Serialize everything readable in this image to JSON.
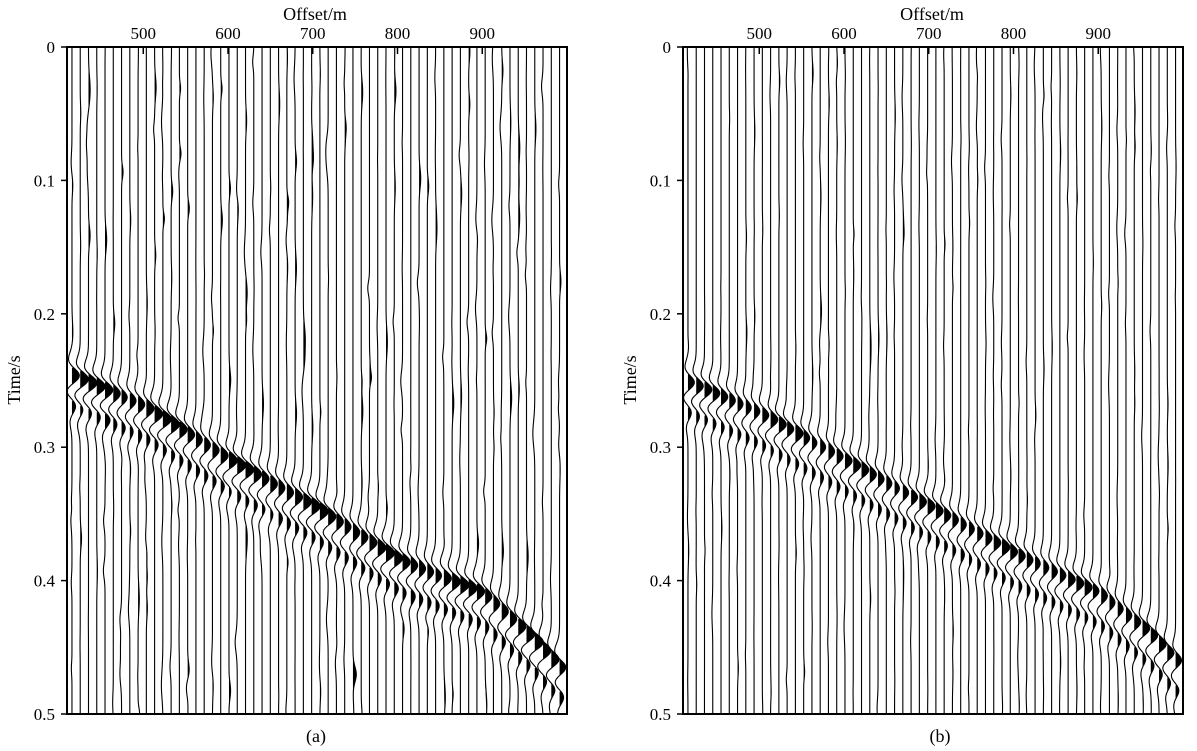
{
  "colors": {
    "trace": "#000000",
    "background": "#ffffff"
  },
  "chart_data": [
    {
      "type": "seismic-wiggle",
      "panel_label": "(a)",
      "xlabel": "Offset/m",
      "ylabel": "Time/s",
      "xticks": [
        500,
        600,
        700,
        800,
        900
      ],
      "yticks": [
        "0",
        "0.1",
        "0.2",
        "0.3",
        "0.4",
        "0.5"
      ],
      "xlim": [
        410,
        1000
      ],
      "ylim": [
        0,
        0.5
      ],
      "grid": false,
      "traces": 60,
      "noise": 0.22,
      "events": [
        {
          "name": "",
          "offsets": [
            410,
            500,
            600,
            700,
            800,
            900,
            960,
            990
          ],
          "times": [
            0.245,
            0.27,
            0.31,
            0.345,
            0.385,
            0.41,
            0.445,
            0.465
          ],
          "amplitude": 1.0,
          "width": 0.008,
          "freq": 30
        }
      ]
    },
    {
      "type": "seismic-wiggle",
      "panel_label": "(b)",
      "xlabel": "Offset/m",
      "ylabel": "Time/s",
      "xticks": [
        500,
        600,
        700,
        800,
        900
      ],
      "yticks": [
        "0",
        "0.1",
        "0.2",
        "0.3",
        "0.4",
        "0.5"
      ],
      "xlim": [
        410,
        1000
      ],
      "ylim": [
        0,
        0.5
      ],
      "grid": false,
      "traces": 60,
      "noise": 0.12,
      "events": [
        {
          "name": "",
          "offsets": [
            410,
            500,
            600,
            700,
            800,
            900,
            960,
            990
          ],
          "times": [
            0.25,
            0.275,
            0.31,
            0.345,
            0.38,
            0.41,
            0.44,
            0.46
          ],
          "amplitude": 0.85,
          "width": 0.006,
          "freq": 32
        }
      ]
    }
  ]
}
